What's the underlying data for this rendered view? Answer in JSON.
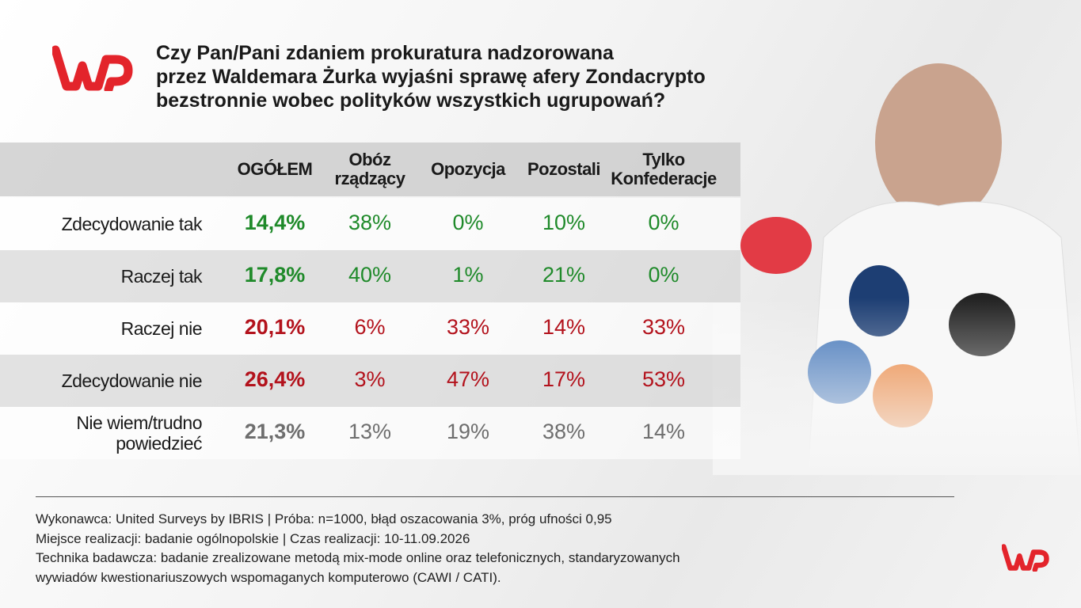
{
  "header": {
    "title": [
      "Czy Pan/Pani zdaniem prokuratura nadzorowana",
      "przez Waldemara Żurka wyjaśni sprawę afery Zondacrypto",
      "bezstronnie wobec polityków wszystkich ugrupowań?"
    ]
  },
  "table": {
    "columns": [
      [
        "OGÓŁEM"
      ],
      [
        "Obóz",
        "rządzący"
      ],
      [
        "Opozycja"
      ],
      [
        "Pozostali"
      ],
      [
        "Tylko",
        "Konfederacje"
      ]
    ],
    "rows": [
      {
        "label": [
          "Zdecydowanie tak"
        ],
        "color": "#1f8a2a",
        "cells": [
          "14,4%",
          "38%",
          "0%",
          "10%",
          "0%"
        ]
      },
      {
        "label": [
          "Raczej tak"
        ],
        "color": "#1f8a2a",
        "cells": [
          "17,8%",
          "40%",
          "1%",
          "21%",
          "0%"
        ]
      },
      {
        "label": [
          "Raczej nie"
        ],
        "color": "#b3121c",
        "cells": [
          "20,1%",
          "6%",
          "33%",
          "14%",
          "33%"
        ]
      },
      {
        "label": [
          "Zdecydowanie nie"
        ],
        "color": "#b3121c",
        "cells": [
          "26,4%",
          "3%",
          "47%",
          "17%",
          "53%"
        ]
      },
      {
        "label": [
          "Nie wiem/trudno",
          "powiedzieć"
        ],
        "color": "#6e6e6e",
        "cells": [
          "21,3%",
          "13%",
          "19%",
          "38%",
          "14%"
        ]
      }
    ]
  },
  "footer": [
    "Wykonawca: United Surveys by IBRIS | Próba: n=1000, błąd oszacowania 3%, próg ufności 0,95",
    "Miejsce realizacji: badanie ogólnopolskie | Czas realizacji: 10-11.09.2026",
    "Technika badawcza: badanie zrealizowane metodą mix-mode online oraz telefonicznych, standaryzowanych",
    "wywiadów kwestionariuszowych wspomaganych komputerowo (CAWI / CATI)."
  ]
}
